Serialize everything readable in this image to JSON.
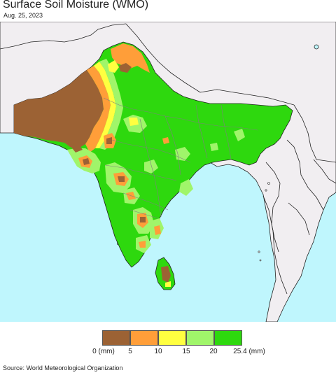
{
  "header": {
    "title": "Surface Soil Moisture (WMO)",
    "date": "Aug. 25, 2023"
  },
  "map": {
    "ocean_color": "#bff6fd",
    "land_outside_color": "#f1eef1",
    "border_color": "#222222",
    "internal_border_color": "#7f7f7f"
  },
  "legend": {
    "colors": [
      "#9c6234",
      "#ff9e39",
      "#ffff40",
      "#a0f56a",
      "#2ed80e"
    ],
    "labels": [
      "0 (mm)",
      "5",
      "10",
      "15",
      "20",
      "25.4 (mm)"
    ]
  },
  "footer": {
    "source": "Source: World Meteorological Organization"
  }
}
